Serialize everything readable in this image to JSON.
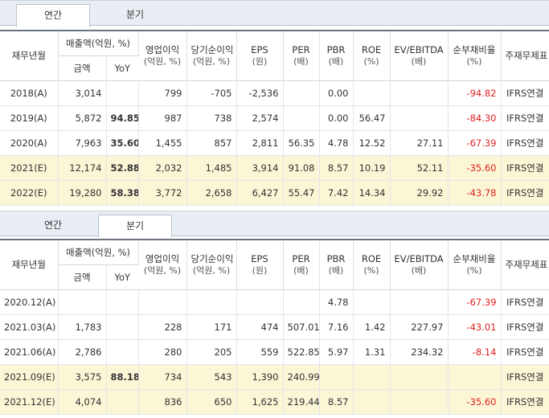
{
  "annual": {
    "tabs": [
      {
        "label": "연간"
      },
      {
        "label": "분기"
      }
    ],
    "active_tab": "연간",
    "header": {
      "period": "재무년월",
      "sales_group": "매출액(억원, %)",
      "sales_amount": "금액",
      "sales_yoy": "YoY",
      "op_income": "영업이익",
      "op_income_unit": "(억원, %)",
      "net_income": "당기순이익",
      "net_income_unit": "(억원, %)",
      "eps": "EPS",
      "eps_unit": "(원)",
      "per": "PER",
      "per_unit": "(배)",
      "pbr": "PBR",
      "pbr_unit": "(배)",
      "roe": "ROE",
      "roe_unit": "(%)",
      "ev_ebitda": "EV/EBITDA",
      "ev_ebitda_unit": "(배)",
      "debt_ratio": "순부채비율",
      "debt_ratio_unit": "(%)",
      "basis": "주재무제표"
    },
    "rows": [
      {
        "period": "2018(A)",
        "sales": "3,014",
        "yoy": "",
        "op": "799",
        "net": "-705",
        "eps": "-2,536",
        "per": "",
        "pbr": "0.00",
        "roe": "",
        "ev": "",
        "debt": "-94.82",
        "basis": "IFRS연결",
        "estimate": false
      },
      {
        "period": "2019(A)",
        "sales": "5,872",
        "yoy": "94.85",
        "op": "987",
        "net": "738",
        "eps": "2,574",
        "per": "",
        "pbr": "0.00",
        "roe": "56.47",
        "ev": "",
        "debt": "-84.30",
        "basis": "IFRS연결",
        "estimate": false
      },
      {
        "period": "2020(A)",
        "sales": "7,963",
        "yoy": "35.60",
        "op": "1,455",
        "net": "857",
        "eps": "2,811",
        "per": "56.35",
        "pbr": "4.78",
        "roe": "12.52",
        "ev": "27.11",
        "debt": "-67.39",
        "basis": "IFRS연결",
        "estimate": false
      },
      {
        "period": "2021(E)",
        "sales": "12,174",
        "yoy": "52.88",
        "op": "2,032",
        "net": "1,485",
        "eps": "3,914",
        "per": "91.08",
        "pbr": "8.57",
        "roe": "10.19",
        "ev": "52.11",
        "debt": "-35.60",
        "basis": "IFRS연결",
        "estimate": true
      },
      {
        "period": "2022(E)",
        "sales": "19,280",
        "yoy": "58.38",
        "op": "3,772",
        "net": "2,658",
        "eps": "6,427",
        "per": "55.47",
        "pbr": "7.42",
        "roe": "14.34",
        "ev": "29.92",
        "debt": "-43.78",
        "basis": "IFRS연결",
        "estimate": true
      }
    ]
  },
  "quarterly": {
    "tabs": [
      {
        "label": "연간"
      },
      {
        "label": "분기"
      }
    ],
    "active_tab": "분기",
    "header": {
      "period": "재무년월",
      "sales_group": "매출액(억원, %)",
      "sales_amount": "금액",
      "sales_yoy": "YoY",
      "op_income": "영업이익",
      "op_income_unit": "(억원, %)",
      "net_income": "당기순이익",
      "net_income_unit": "(억원, %)",
      "eps": "EPS",
      "eps_unit": "(원)",
      "per": "PER",
      "per_unit": "(배)",
      "pbr": "PBR",
      "pbr_unit": "(배)",
      "roe": "ROE",
      "roe_unit": "(%)",
      "ev_ebitda": "EV/EBITDA",
      "ev_ebitda_unit": "(배)",
      "debt_ratio": "순부채비율",
      "debt_ratio_unit": "(%)",
      "basis": "주재무제표"
    },
    "rows": [
      {
        "period": "2020.12(A)",
        "sales": "",
        "yoy": "",
        "op": "",
        "net": "",
        "eps": "",
        "per": "",
        "pbr": "4.78",
        "roe": "",
        "ev": "",
        "debt": "-67.39",
        "basis": "IFRS연결",
        "estimate": false
      },
      {
        "period": "2021.03(A)",
        "sales": "1,783",
        "yoy": "",
        "op": "228",
        "net": "171",
        "eps": "474",
        "per": "507.01",
        "pbr": "7.16",
        "roe": "1.42",
        "ev": "227.97",
        "debt": "-43.01",
        "basis": "IFRS연결",
        "estimate": false
      },
      {
        "period": "2021.06(A)",
        "sales": "2,786",
        "yoy": "",
        "op": "280",
        "net": "205",
        "eps": "559",
        "per": "522.85",
        "pbr": "5.97",
        "roe": "1.31",
        "ev": "234.32",
        "debt": "-8.14",
        "basis": "IFRS연결",
        "estimate": false
      },
      {
        "period": "2021.09(E)",
        "sales": "3,575",
        "yoy": "88.18",
        "op": "734",
        "net": "543",
        "eps": "1,390",
        "per": "240.99",
        "pbr": "",
        "roe": "",
        "ev": "",
        "debt": "",
        "basis": "IFRS연결",
        "estimate": true
      },
      {
        "period": "2021.12(E)",
        "sales": "4,074",
        "yoy": "",
        "op": "836",
        "net": "650",
        "eps": "1,625",
        "per": "219.44",
        "pbr": "8.57",
        "roe": "",
        "ev": "",
        "debt": "-35.60",
        "basis": "IFRS연결",
        "estimate": true
      }
    ]
  }
}
